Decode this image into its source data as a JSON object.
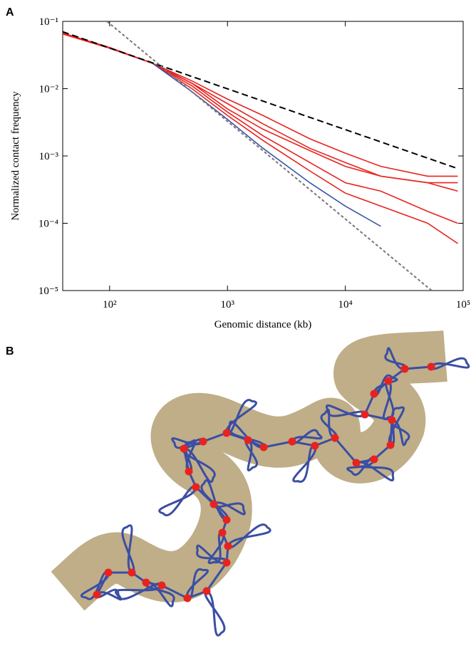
{
  "panel_a": {
    "label": "A"
  },
  "panel_b": {
    "label": "B"
  },
  "chart_data": {
    "type": "line",
    "log_x": true,
    "log_y": true,
    "xlabel": "Genomic distance (kb)",
    "ylabel": "Normalized contact frequency",
    "xlim": [
      40,
      100000
    ],
    "ylim": [
      1e-05,
      0.1
    ],
    "xticks": [
      {
        "value": 100,
        "label": "10²"
      },
      {
        "value": 1000,
        "label": "10³"
      },
      {
        "value": 10000,
        "label": "10⁴"
      },
      {
        "value": 100000,
        "label": "10⁵"
      }
    ],
    "yticks": [
      {
        "value": 1e-05,
        "label": "10⁻⁵"
      },
      {
        "value": 0.0001,
        "label": "10⁻⁴"
      },
      {
        "value": 0.001,
        "label": "10⁻³"
      },
      {
        "value": 0.01,
        "label": "10⁻²"
      },
      {
        "value": 0.1,
        "label": "10⁻¹"
      }
    ],
    "x": [
      40,
      100,
      230,
      500,
      1000,
      2000,
      5000,
      10000,
      20000,
      50000,
      90000
    ],
    "series": [
      {
        "color": "#e8231f",
        "values": [
          0.065,
          0.04,
          0.024,
          0.013,
          0.007,
          0.004,
          0.0018,
          0.0011,
          0.0007,
          0.0005,
          0.0005
        ]
      },
      {
        "color": "#e8231f",
        "values": [
          0.065,
          0.04,
          0.024,
          0.012,
          0.006,
          0.003,
          0.0013,
          0.0008,
          0.0005,
          0.0004,
          0.0004
        ]
      },
      {
        "color": "#e8231f",
        "values": [
          0.066,
          0.04,
          0.024,
          0.012,
          0.005,
          0.0025,
          0.0012,
          0.0007,
          0.0005,
          0.0004,
          0.0003
        ]
      },
      {
        "color": "#e8231f",
        "values": [
          0.066,
          0.04,
          0.024,
          0.011,
          0.0045,
          0.002,
          0.0008,
          0.0004,
          0.0003,
          0.00015,
          0.0001
        ]
      },
      {
        "color": "#e8231f",
        "values": [
          0.067,
          0.041,
          0.024,
          0.01,
          0.004,
          0.0017,
          0.0006,
          0.00028,
          0.00018,
          0.0001,
          5e-05
        ]
      },
      {
        "color": "#3b55a8",
        "values": [
          null,
          null,
          0.024,
          0.009,
          0.0035,
          0.0013,
          0.0004,
          0.00018,
          9e-05,
          null,
          null
        ]
      }
    ],
    "reference_lines": [
      {
        "x": [
          40,
          90000
        ],
        "y": [
          0.07,
          0.00065
        ],
        "color": "#000000",
        "dash": "9 5"
      },
      {
        "x": [
          95,
          54000
        ],
        "y": [
          0.1,
          1e-05
        ],
        "color": "#777777",
        "dash": "4 3"
      }
    ]
  }
}
